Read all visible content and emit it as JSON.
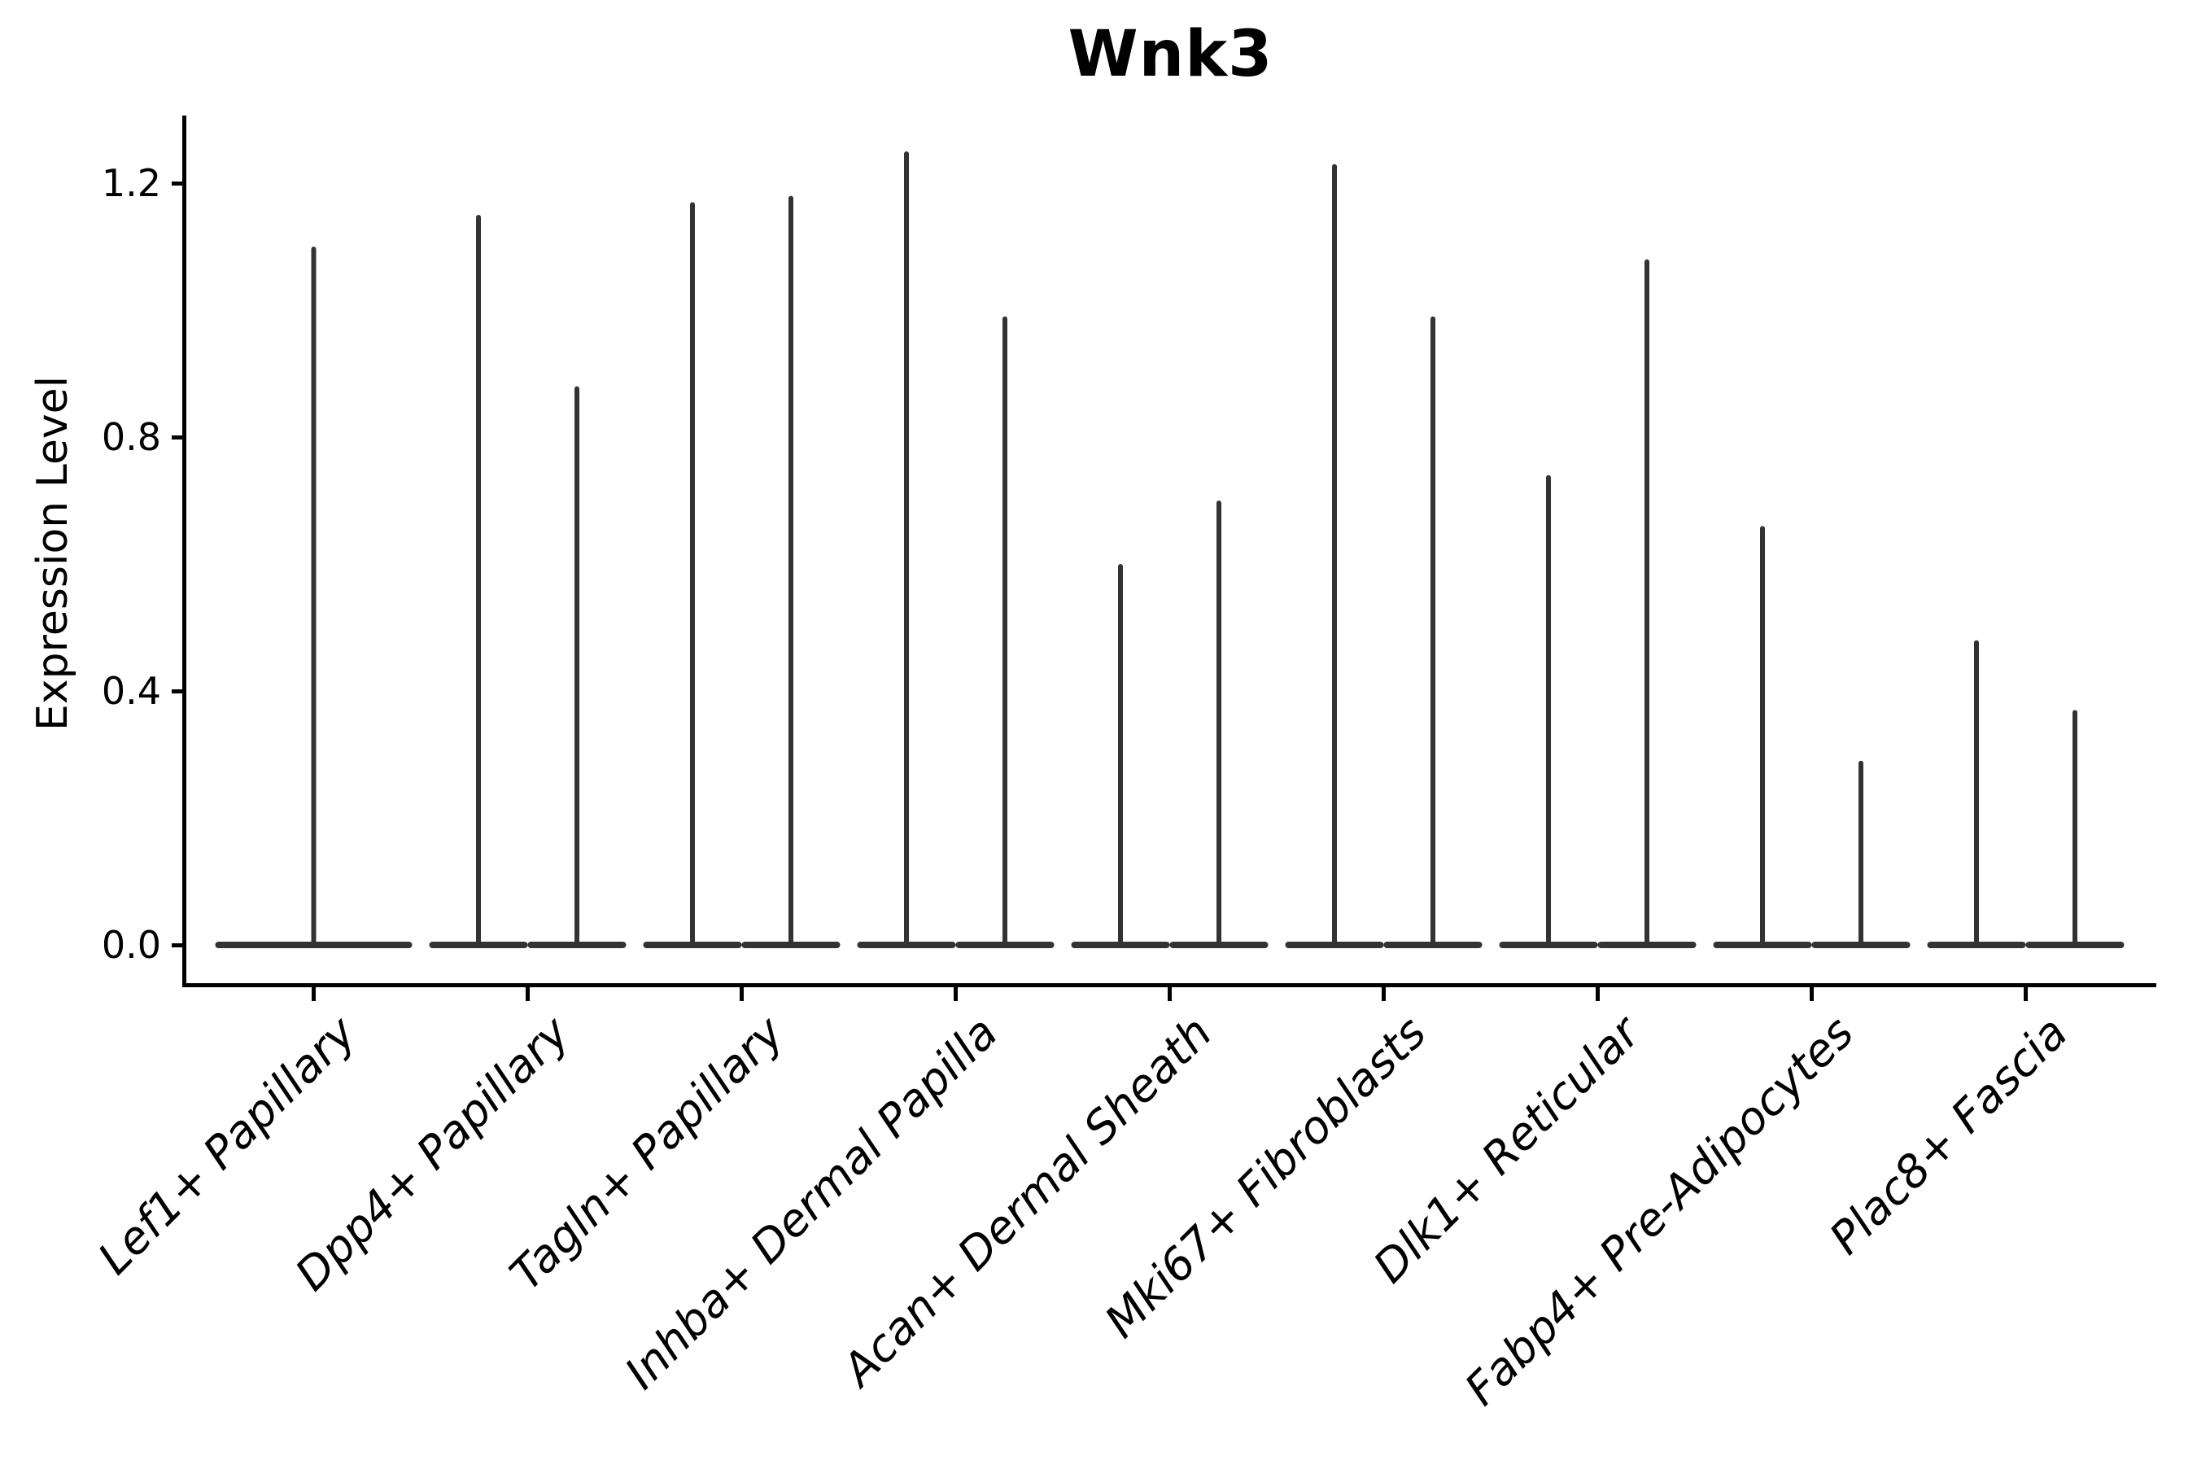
{
  "figure": {
    "title": "Wnk3",
    "y_axis_label": "Expression Level"
  },
  "chart_data": {
    "type": "violin",
    "title": "Wnk3",
    "xlabel": "",
    "ylabel": "Expression Level",
    "ylim": [
      -0.06,
      1.31
    ],
    "yticks": [
      0.0,
      0.4,
      0.8,
      1.2
    ],
    "ytick_labels": [
      "0.0",
      "0.4",
      "0.8",
      "1.2"
    ],
    "grid": false,
    "legend": null,
    "violin_color": "#333333",
    "axis_color": "#000000",
    "categories": [
      "Lef1+ Papillary",
      "Dpp4+ Papillary",
      "Tagln+ Papillary",
      "Inhba+ Dermal Papilla",
      "Acan+ Dermal Sheath",
      "Mki67+ Fibroblasts",
      "Dlk1+ Reticular",
      "Fabp4+ Pre-Adipocytes",
      "Plac8+ Fascia"
    ],
    "violins": [
      {
        "category": "Lef1+ Papillary",
        "maxima": [
          1.1
        ]
      },
      {
        "category": "Dpp4+ Papillary",
        "maxima": [
          1.15,
          0.88
        ]
      },
      {
        "category": "Tagln+ Papillary",
        "maxima": [
          1.17,
          1.18
        ]
      },
      {
        "category": "Inhba+ Dermal Papilla",
        "maxima": [
          1.25,
          0.99
        ]
      },
      {
        "category": "Acan+ Dermal Sheath",
        "maxima": [
          0.6,
          0.7
        ]
      },
      {
        "category": "Mki67+ Fibroblasts",
        "maxima": [
          1.23,
          0.99
        ]
      },
      {
        "category": "Dlk1+ Reticular",
        "maxima": [
          0.74,
          1.08
        ]
      },
      {
        "category": "Fabp4+ Pre-Adipocytes",
        "maxima": [
          0.66,
          0.29
        ]
      },
      {
        "category": "Plac8+ Fascia",
        "maxima": [
          0.48,
          0.37
        ]
      }
    ]
  }
}
